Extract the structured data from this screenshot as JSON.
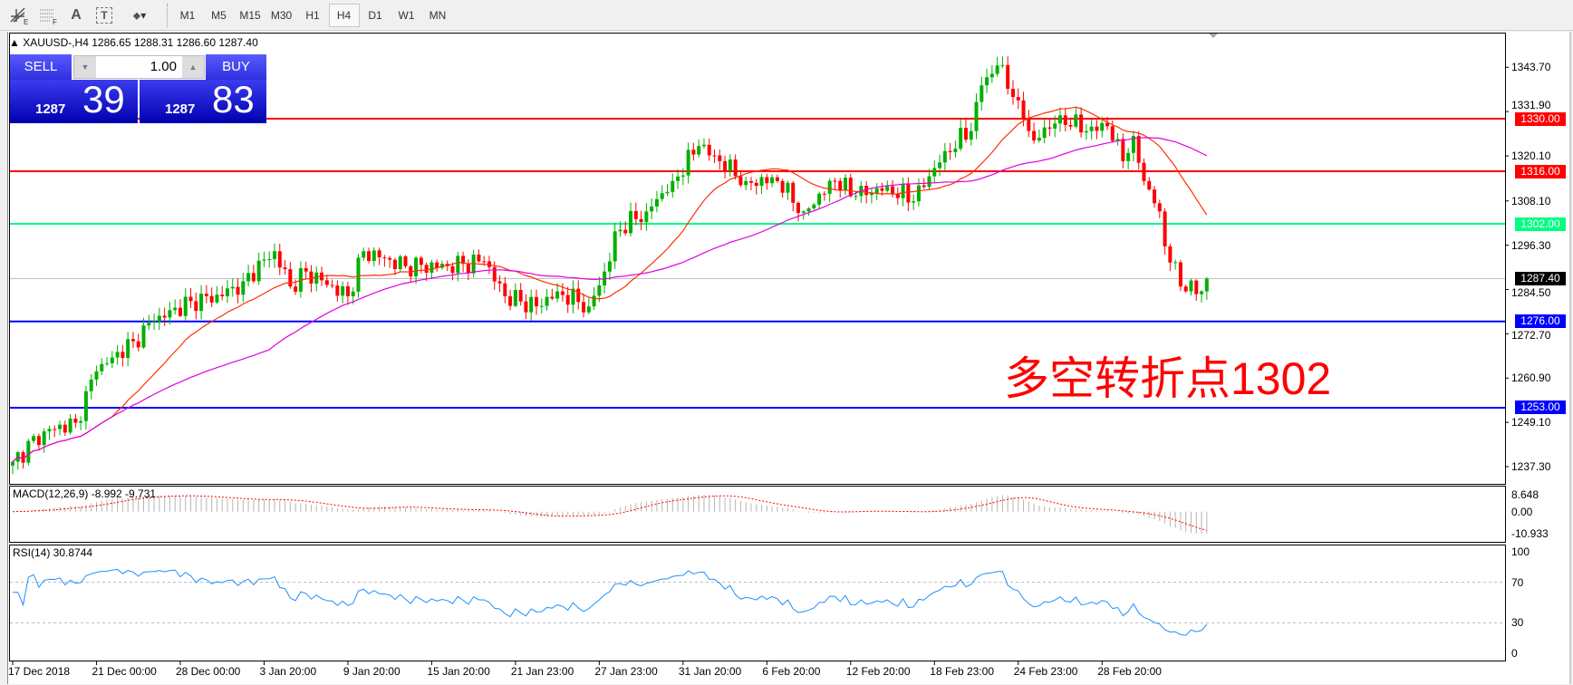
{
  "toolbar": {
    "tools": [
      {
        "icon": "fibonacci-fan-icon",
        "label": "E"
      },
      {
        "icon": "fibonacci-retracement-icon",
        "label": "F"
      },
      {
        "icon": "text-icon",
        "label": "A"
      },
      {
        "icon": "text-label-icon",
        "label": "T"
      },
      {
        "icon": "arrows-dropdown-icon",
        "label": "▾"
      }
    ],
    "timeframes": [
      "M1",
      "M5",
      "M15",
      "M30",
      "H1",
      "H4",
      "D1",
      "W1",
      "MN"
    ],
    "active_timeframe": "H4"
  },
  "chart": {
    "symbol_line": "XAUUSD-,H4  1286.65 1288.31 1286.60 1287.40",
    "trade": {
      "sell_label": "SELL",
      "buy_label": "BUY",
      "volume": "1.00",
      "sell_big": "1287",
      "sell_small": "39",
      "buy_big": "1287",
      "buy_small": "83"
    },
    "annotation": "多空转折点1302",
    "colors": {
      "bull": "#00b000",
      "bear": "#ff0000",
      "ma_fast": "#ff3000",
      "ma_slow": "#e000e0",
      "rsi": "#1e90ff",
      "macd_signal": "#ff0000",
      "macd_hist": "#b4b4b4",
      "trade_panel": "#1a1acc"
    }
  },
  "chart_data": {
    "type": "candlestick",
    "timeframe": "H4",
    "price_axis_ticks": [
      "1343.70",
      "1331.90",
      "1320.10",
      "1308.10",
      "1296.30",
      "1284.50",
      "1272.70",
      "1260.90",
      "1249.10",
      "1237.30"
    ],
    "ylim": [
      1233,
      1349
    ],
    "levels": [
      {
        "price": "1330.00",
        "color": "#ff0000"
      },
      {
        "price": "1316.00",
        "color": "#ff0000"
      },
      {
        "price": "1302.00",
        "color": "#00ff80"
      },
      {
        "price": "1287.40",
        "color": "#000000",
        "line": "#c0c0c0"
      },
      {
        "price": "1276.00",
        "color": "#0000ff"
      },
      {
        "price": "1253.00",
        "color": "#0000ff"
      }
    ],
    "time_labels": [
      "17 Dec 2018",
      "21 Dec 00:00",
      "28 Dec 00:00",
      "3 Jan 20:00",
      "9 Jan 20:00",
      "15 Jan 20:00",
      "21 Jan 23:00",
      "27 Jan 23:00",
      "31 Jan 20:00",
      "6 Feb 20:00",
      "12 Feb 20:00",
      "18 Feb 23:00",
      "24 Feb 23:00",
      "28 Feb 20:00"
    ],
    "bar_count": 229,
    "close_path": [
      [
        0,
        1238.6
      ],
      [
        6,
        1246.7
      ],
      [
        12,
        1249
      ],
      [
        16,
        1262.7
      ],
      [
        23,
        1270.7
      ],
      [
        27,
        1276
      ],
      [
        34,
        1281.4
      ],
      [
        40,
        1282.7
      ],
      [
        44,
        1286.7
      ],
      [
        50,
        1294.7
      ],
      [
        53,
        1285.3
      ],
      [
        56,
        1289.3
      ],
      [
        64,
        1282.7
      ],
      [
        67,
        1294.7
      ],
      [
        75,
        1290.7
      ],
      [
        83,
        1290.7
      ],
      [
        90,
        1292
      ],
      [
        94,
        1282.7
      ],
      [
        100,
        1280
      ],
      [
        104,
        1284
      ],
      [
        110,
        1280
      ],
      [
        114,
        1292
      ],
      [
        115,
        1300
      ],
      [
        121,
        1305.3
      ],
      [
        126,
        1313.4
      ],
      [
        131,
        1322.7
      ],
      [
        135,
        1318.7
      ],
      [
        140,
        1313.4
      ],
      [
        146,
        1313.4
      ],
      [
        151,
        1305.3
      ],
      [
        157,
        1313.4
      ],
      [
        161,
        1309.4
      ],
      [
        167,
        1312
      ],
      [
        172,
        1308
      ],
      [
        178,
        1321.4
      ],
      [
        183,
        1326.7
      ],
      [
        185,
        1338.9
      ],
      [
        188,
        1344.2
      ],
      [
        192,
        1334.9
      ],
      [
        195,
        1324.2
      ],
      [
        200,
        1330.9
      ],
      [
        205,
        1326.7
      ],
      [
        209,
        1328
      ],
      [
        212,
        1318.7
      ],
      [
        214,
        1325.4
      ],
      [
        216,
        1313.4
      ],
      [
        219,
        1305.3
      ],
      [
        220,
        1296
      ],
      [
        223,
        1285.3
      ],
      [
        227,
        1284
      ],
      [
        228,
        1287.4
      ]
    ],
    "macd": {
      "label": "MACD(12,26,9) -8.992 -9.731",
      "ticks": [
        "8.648",
        "0.00",
        "-10.933"
      ]
    },
    "rsi": {
      "label": "RSI(14) 30.8744",
      "ticks": [
        "100",
        "70",
        "30",
        "0"
      ]
    }
  }
}
